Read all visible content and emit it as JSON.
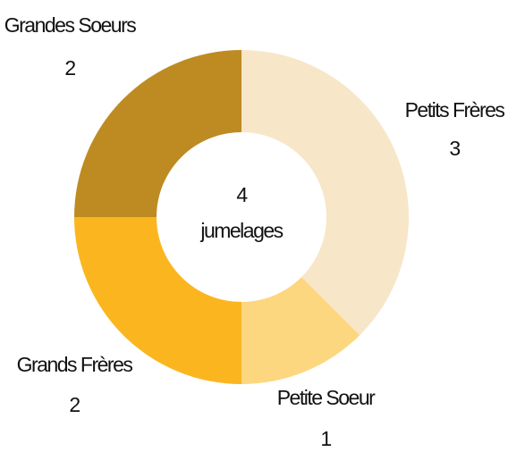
{
  "chart_data": {
    "type": "donut",
    "categories": [
      "Petits Frères",
      "Petite Soeur",
      "Grands Frères",
      "Grandes Soeurs"
    ],
    "values": [
      3,
      1,
      2,
      2
    ],
    "colors": [
      "#f7e6c8",
      "#fdd77f",
      "#fbb61f",
      "#be8b22"
    ],
    "center_value": 4,
    "center_label": "jumelages"
  }
}
